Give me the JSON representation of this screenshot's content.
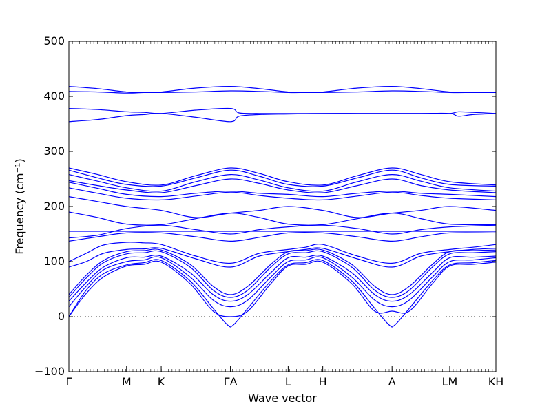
{
  "chart_data": {
    "type": "line",
    "title": "",
    "xlabel": "Wave vector",
    "ylabel": "Frequency (cm⁻¹)",
    "ylim": [
      -100,
      500
    ],
    "y_ticks": [
      -100,
      0,
      100,
      200,
      300,
      400,
      500
    ],
    "x_ticks": [
      {
        "label": "Γ",
        "x": 0.0
      },
      {
        "label": "M",
        "x": 1.0
      },
      {
        "label": "K",
        "x": 1.6
      },
      {
        "label": "ΓA",
        "x": 2.8
      },
      {
        "label": "L",
        "x": 3.8
      },
      {
        "label": "H",
        "x": 4.4
      },
      {
        "label": "A",
        "x": 5.6
      },
      {
        "label": "LM",
        "x": 6.6
      },
      {
        "label": "KH",
        "x": 7.4
      }
    ],
    "xlim": [
      0,
      7.4
    ],
    "zero_line": 0,
    "color": "#0000ff",
    "series": [
      {
        "x": [
          0,
          0.5,
          1.0,
          1.3,
          1.6,
          2.2,
          2.8,
          3.3,
          3.8,
          4.1,
          4.4,
          5.0,
          5.6,
          6.1,
          6.6,
          7.0,
          7.4
        ],
        "y": [
          418,
          414,
          408,
          407,
          408,
          415,
          418,
          414,
          408,
          407,
          408,
          415,
          418,
          414,
          408,
          407,
          408
        ]
      },
      {
        "x": [
          0,
          0.5,
          1.0,
          1.3,
          1.6,
          2.2,
          2.8,
          3.3,
          3.8,
          4.1,
          4.4,
          5.0,
          5.6,
          6.1,
          6.6,
          7.0,
          7.4
        ],
        "y": [
          409,
          408,
          406,
          407,
          407,
          408,
          410,
          409,
          407,
          407,
          407,
          408,
          410,
          409,
          407,
          407,
          407
        ]
      },
      {
        "x": [
          0,
          0.5,
          1.0,
          1.3,
          1.6,
          2.2,
          2.8,
          2.95,
          3.3,
          3.8,
          4.4,
          5.0,
          5.6,
          6.1,
          6.6,
          6.75,
          7.0,
          7.4
        ],
        "y": [
          378,
          376,
          372,
          371,
          369,
          375,
          378,
          370,
          369,
          369,
          369,
          369,
          369,
          369,
          369,
          372,
          371,
          369
        ]
      },
      {
        "x": [
          0,
          0.5,
          1.0,
          1.3,
          1.6,
          2.2,
          2.8,
          2.95,
          3.3,
          3.8,
          4.4,
          5.0,
          5.6,
          6.1,
          6.6,
          6.75,
          7.0,
          7.4
        ],
        "y": [
          354,
          358,
          365,
          367,
          369,
          362,
          354,
          364,
          367,
          368,
          369,
          369,
          369,
          369,
          369,
          364,
          367,
          369
        ]
      },
      {
        "x": [
          0,
          0.5,
          1.0,
          1.6,
          2.2,
          2.8,
          3.3,
          3.8,
          4.4,
          5.0,
          5.6,
          6.1,
          6.6,
          7.4
        ],
        "y": [
          270,
          258,
          245,
          239,
          256,
          270,
          260,
          245,
          239,
          256,
          270,
          258,
          245,
          239
        ]
      },
      {
        "x": [
          0,
          0.5,
          1.0,
          1.6,
          2.2,
          2.8,
          3.3,
          3.8,
          4.4,
          5.0,
          5.6,
          6.1,
          6.6,
          7.4
        ],
        "y": [
          266,
          252,
          240,
          237,
          252,
          266,
          255,
          240,
          237,
          252,
          266,
          252,
          240,
          237
        ]
      },
      {
        "x": [
          0,
          0.5,
          1.0,
          1.6,
          2.2,
          2.8,
          3.3,
          3.8,
          4.4,
          5.0,
          5.6,
          6.1,
          6.6,
          7.4
        ],
        "y": [
          258,
          246,
          234,
          228,
          245,
          258,
          248,
          234,
          228,
          245,
          258,
          246,
          234,
          228
        ]
      },
      {
        "x": [
          0,
          0.5,
          1.0,
          1.6,
          2.2,
          2.8,
          3.3,
          3.8,
          4.4,
          5.0,
          5.6,
          6.1,
          6.6,
          7.4
        ],
        "y": [
          247,
          238,
          230,
          225,
          238,
          250,
          242,
          230,
          225,
          238,
          250,
          238,
          230,
          225
        ]
      },
      {
        "x": [
          0,
          0.5,
          1.0,
          1.6,
          2.2,
          2.8,
          3.3,
          3.8,
          4.4,
          5.0,
          5.6,
          6.1,
          6.6,
          7.4
        ],
        "y": [
          244,
          233,
          222,
          218,
          224,
          228,
          224,
          222,
          218,
          224,
          228,
          224,
          222,
          218
        ]
      },
      {
        "x": [
          0,
          0.5,
          1.0,
          1.6,
          2.2,
          2.8,
          3.3,
          3.8,
          4.4,
          5.0,
          5.6,
          6.1,
          6.6,
          7.4
        ],
        "y": [
          234,
          224,
          215,
          212,
          219,
          226,
          220,
          215,
          212,
          219,
          226,
          220,
          215,
          212
        ]
      },
      {
        "x": [
          0,
          0.5,
          1.0,
          1.6,
          2.2,
          2.8,
          3.3,
          3.8,
          4.4,
          5.0,
          5.6,
          6.1,
          6.6,
          7.4
        ],
        "y": [
          218,
          209,
          200,
          193,
          180,
          188,
          193,
          200,
          193,
          180,
          188,
          193,
          200,
          193
        ]
      },
      {
        "x": [
          0,
          0.5,
          1.0,
          1.6,
          2.2,
          2.8,
          3.3,
          3.8,
          4.4,
          5.0,
          5.6,
          6.1,
          6.6,
          7.4
        ],
        "y": [
          190,
          180,
          168,
          167,
          178,
          188,
          180,
          168,
          167,
          178,
          188,
          178,
          168,
          167
        ]
      },
      {
        "x": [
          0,
          0.5,
          1.0,
          1.6,
          2.2,
          2.8,
          3.3,
          3.8,
          4.4,
          5.0,
          5.6,
          6.1,
          6.6,
          7.4
        ],
        "y": [
          155,
          155,
          155,
          155,
          155,
          155,
          155,
          155,
          155,
          155,
          155,
          155,
          155,
          155
        ]
      },
      {
        "x": [
          0,
          0.5,
          1.0,
          1.6,
          2.2,
          2.8,
          3.3,
          3.8,
          4.4,
          5.0,
          5.6,
          6.1,
          6.6,
          7.4
        ],
        "y": [
          143,
          148,
          160,
          166,
          158,
          150,
          158,
          163,
          166,
          160,
          150,
          158,
          163,
          166
        ]
      },
      {
        "x": [
          0,
          0.5,
          1.0,
          1.6,
          2.2,
          2.8,
          3.3,
          3.8,
          4.4,
          5.0,
          5.6,
          6.1,
          6.6,
          7.4
        ],
        "y": [
          137,
          145,
          152,
          152,
          145,
          137,
          144,
          152,
          152,
          145,
          137,
          145,
          152,
          152
        ]
      },
      {
        "x": [
          0,
          0.3,
          0.6,
          1.0,
          1.3,
          1.6,
          2.2,
          2.8,
          3.3,
          3.8,
          4.1,
          4.4,
          5.0,
          5.6,
          6.1,
          6.6,
          7.0,
          7.4
        ],
        "y": [
          100,
          115,
          130,
          135,
          134,
          131,
          110,
          97,
          115,
          122,
          126,
          131,
          110,
          97,
          115,
          122,
          126,
          131
        ]
      },
      {
        "x": [
          0,
          0.3,
          0.6,
          1.0,
          1.3,
          1.6,
          2.2,
          2.8,
          3.3,
          3.8,
          4.1,
          4.4,
          5.0,
          5.6,
          6.1,
          6.6,
          7.0,
          7.4
        ],
        "y": [
          90,
          100,
          115,
          122,
          123,
          124,
          105,
          90,
          110,
          118,
          122,
          124,
          105,
          90,
          110,
          118,
          122,
          124
        ]
      },
      {
        "x": [
          0,
          0.3,
          0.6,
          1.0,
          1.3,
          1.6,
          2.1,
          2.5,
          2.8,
          3.1,
          3.5,
          3.8,
          4.1,
          4.4,
          4.9,
          5.3,
          5.6,
          5.9,
          6.3,
          6.6,
          7.0,
          7.4
        ],
        "y": [
          40,
          75,
          102,
          118,
          120,
          121,
          95,
          55,
          40,
          55,
          95,
          118,
          120,
          121,
          95,
          55,
          40,
          55,
          95,
          118,
          120,
          121
        ]
      },
      {
        "x": [
          0,
          0.3,
          0.6,
          1.0,
          1.3,
          1.6,
          2.1,
          2.5,
          2.8,
          3.1,
          3.5,
          3.8,
          4.1,
          4.4,
          4.9,
          5.3,
          5.6,
          5.9,
          6.3,
          6.6,
          7.0,
          7.4
        ],
        "y": [
          35,
          70,
          98,
          114,
          116,
          118,
          90,
          48,
          35,
          48,
          90,
          114,
          116,
          118,
          90,
          48,
          35,
          48,
          90,
          114,
          116,
          118
        ]
      },
      {
        "x": [
          0,
          0.3,
          0.6,
          1.0,
          1.3,
          1.6,
          2.1,
          2.5,
          2.8,
          3.1,
          3.5,
          3.8,
          4.1,
          4.4,
          4.9,
          5.3,
          5.6,
          5.9,
          6.3,
          6.6,
          7.0,
          7.4
        ],
        "y": [
          28,
          62,
          90,
          107,
          108,
          110,
          80,
          40,
          28,
          40,
          80,
          107,
          108,
          110,
          80,
          40,
          28,
          40,
          80,
          107,
          108,
          110
        ]
      },
      {
        "x": [
          0,
          0.3,
          0.6,
          1.0,
          1.3,
          1.6,
          2.1,
          2.5,
          2.8,
          3.1,
          3.5,
          3.8,
          4.1,
          4.4,
          4.9,
          5.3,
          5.6,
          5.9,
          6.3,
          6.6,
          7.0,
          7.4
        ],
        "y": [
          18,
          55,
          85,
          100,
          103,
          107,
          72,
          30,
          18,
          30,
          72,
          100,
          103,
          107,
          72,
          30,
          18,
          30,
          72,
          100,
          103,
          107
        ]
      },
      {
        "x": [
          0,
          0.3,
          0.6,
          1.0,
          1.3,
          1.6,
          2.1,
          2.5,
          2.75,
          2.85,
          3.1,
          3.5,
          3.8,
          4.1,
          4.4,
          4.9,
          5.3,
          5.55,
          5.65,
          5.9,
          6.3,
          6.6,
          7.0,
          7.4
        ],
        "y": [
          0,
          48,
          78,
          94,
          98,
          102,
          65,
          15,
          -15,
          -15,
          15,
          65,
          94,
          98,
          102,
          65,
          15,
          -15,
          -15,
          15,
          65,
          94,
          98,
          102
        ]
      },
      {
        "x": [
          0,
          0.3,
          0.6,
          1.0,
          1.3,
          1.6,
          2.1,
          2.5,
          2.8,
          3.1,
          3.5,
          3.8,
          4.1,
          4.4,
          4.9,
          5.3,
          5.6,
          5.9,
          6.3,
          6.6,
          7.0,
          7.4
        ],
        "y": [
          0,
          42,
          72,
          92,
          95,
          99,
          60,
          10,
          0,
          10,
          60,
          92,
          95,
          99,
          60,
          10,
          10,
          10,
          60,
          92,
          95,
          99
        ]
      }
    ]
  }
}
